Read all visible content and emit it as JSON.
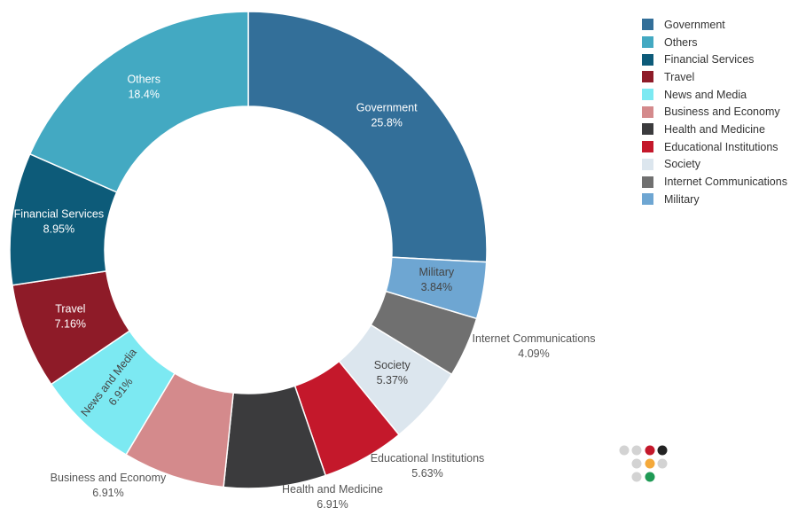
{
  "chart_data": {
    "type": "pie",
    "donut": true,
    "legend_position": "top-right",
    "slices": [
      {
        "label": "Government",
        "value": 25.8,
        "value_label": "25.8%",
        "color": "#336f99",
        "label_color": "#ffffff",
        "label_placement": "inside"
      },
      {
        "label": "Military",
        "value": 3.84,
        "value_label": "3.84%",
        "color": "#6ea6d2",
        "label_color": "#444444",
        "label_placement": "inside"
      },
      {
        "label": "Internet Communications",
        "value": 4.09,
        "value_label": "4.09%",
        "color": "#707070",
        "label_color": "#555555",
        "label_placement": "outside"
      },
      {
        "label": "Society",
        "value": 5.37,
        "value_label": "5.37%",
        "color": "#dce6ee",
        "label_color": "#444444",
        "label_placement": "inside"
      },
      {
        "label": "Educational Institutions",
        "value": 5.63,
        "value_label": "5.63%",
        "color": "#c4182b",
        "label_color": "#555555",
        "label_placement": "outside"
      },
      {
        "label": "Health and Medicine",
        "value": 6.91,
        "value_label": "6.91%",
        "color": "#3b3b3d",
        "label_color": "#555555",
        "label_placement": "outside"
      },
      {
        "label": "Business and Economy",
        "value": 6.91,
        "value_label": "6.91%",
        "color": "#d48a8c",
        "label_color": "#555555",
        "label_placement": "outside"
      },
      {
        "label": "News and Media",
        "value": 6.91,
        "value_label": "6.91%",
        "color": "#7ce9f2",
        "label_color": "#444444",
        "label_placement": "inside-rotated"
      },
      {
        "label": "Travel",
        "value": 7.16,
        "value_label": "7.16%",
        "color": "#8e1b28",
        "label_color": "#ffffff",
        "label_placement": "inside"
      },
      {
        "label": "Financial Services",
        "value": 8.95,
        "value_label": "8.95%",
        "color": "#0d5b79",
        "label_color": "#ffffff",
        "label_placement": "inside"
      },
      {
        "label": "Others",
        "value": 18.4,
        "value_label": "18.4%",
        "color": "#43a9c2",
        "label_color": "#ffffff",
        "label_placement": "inside"
      }
    ]
  },
  "legend": {
    "items": [
      {
        "label": "Government",
        "color": "#336f99"
      },
      {
        "label": "Others",
        "color": "#43a9c2"
      },
      {
        "label": "Financial Services",
        "color": "#0d5b79"
      },
      {
        "label": "Travel",
        "color": "#8e1b28"
      },
      {
        "label": "News and Media",
        "color": "#7ce9f2"
      },
      {
        "label": "Business and Economy",
        "color": "#d48a8c"
      },
      {
        "label": "Health and Medicine",
        "color": "#3b3b3d"
      },
      {
        "label": "Educational Institutions",
        "color": "#c4182b"
      },
      {
        "label": "Society",
        "color": "#dce6ee"
      },
      {
        "label": "Internet Communications",
        "color": "#707070"
      },
      {
        "label": "Military",
        "color": "#6ea6d2"
      }
    ]
  },
  "logo": {
    "dot_colors": [
      "#d3d3d3",
      "#d3d3d3",
      "#c4182b",
      "#222222",
      "#d3d3d3",
      "#f4a93b",
      "#d3d3d3",
      "#d3d3d3",
      "#1f9a55"
    ]
  }
}
